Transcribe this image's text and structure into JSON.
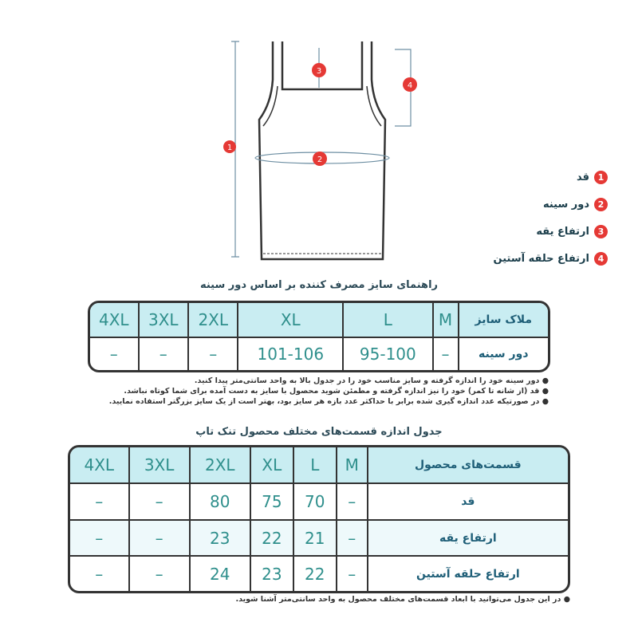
{
  "legend": [
    {
      "n": "1",
      "label": "قد"
    },
    {
      "n": "2",
      "label": "دور سینه"
    },
    {
      "n": "3",
      "label": "ارتفاع یقه"
    },
    {
      "n": "4",
      "label": "ارتفاع حلقه آستین"
    }
  ],
  "table1": {
    "title": "راهنمای سایز مصرف کننده بر اساس دور سینه",
    "header_label": "ملاک سایز",
    "sizes": [
      "M",
      "L",
      "XL",
      "2XL",
      "3XL",
      "4XL"
    ],
    "rows": [
      {
        "label": "دور سینه",
        "values": [
          "–",
          "95-100",
          "101-106",
          "–",
          "–",
          "–"
        ]
      }
    ],
    "notes": [
      "دور سینه خود را اندازه گرفته و سایز مناسب خود را در جدول بالا به واحد سانتی‌متر پیدا کنید.",
      "قد (از شانه تا کمر) خود را نیز اندازه گرفته و مطمئن شوید محصول با سایز به دست آمده برای شما کوتاه نباشد.",
      "در صورتیکه عدد اندازه گیری شده برابر با حداکثر عدد بازه هر سایز بود، بهتر است از یک سایز بزرگتر استفاده نمایید."
    ]
  },
  "table2": {
    "title": "جدول اندازه قسمت‌های مختلف محصول تنک تاپ",
    "header_label": "قسمت‌های محصول",
    "sizes": [
      "M",
      "L",
      "XL",
      "2XL",
      "3XL",
      "4XL"
    ],
    "rows": [
      {
        "label": "قد",
        "values": [
          "–",
          "70",
          "75",
          "80",
          "–",
          "–"
        ]
      },
      {
        "label": "ارتفاع یقه",
        "values": [
          "–",
          "21",
          "22",
          "23",
          "–",
          "–"
        ]
      },
      {
        "label": "ارتفاع حلقه آستین",
        "values": [
          "–",
          "22",
          "23",
          "24",
          "–",
          "–"
        ]
      }
    ],
    "notes": [
      "در این جدول می‌توانید با ابعاد قسمت‌های مختلف محصول به واحد سانتی‌متر آشنا شوید."
    ]
  },
  "colors": {
    "marker": "#e53935",
    "header": "#c9edf2",
    "value": "#2f8f8c"
  }
}
